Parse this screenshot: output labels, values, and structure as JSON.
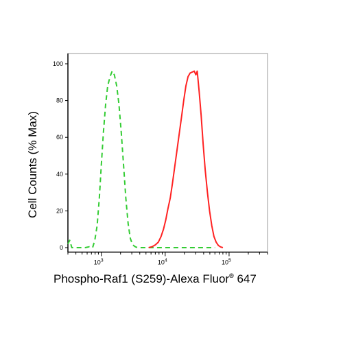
{
  "chart_data": {
    "type": "line",
    "title": "",
    "xlabel": "Phospho-Raf1 (S259)-Alexa Fluor",
    "xlabel_sup": "®",
    "xlabel_tail": " 647",
    "ylabel": "Cell Counts (% Max)",
    "x_scale": "log",
    "xlim": [
      300,
      400000
    ],
    "ylim": [
      0,
      100
    ],
    "x_ticks": [
      {
        "value": 1000,
        "base": "10",
        "exp": "3"
      },
      {
        "value": 10000,
        "base": "10",
        "exp": "4"
      },
      {
        "value": 100000,
        "base": "10",
        "exp": "5"
      }
    ],
    "y_ticks": [
      {
        "value": 0,
        "label": "0"
      },
      {
        "value": 20,
        "label": "20"
      },
      {
        "value": 40,
        "label": "40"
      },
      {
        "value": 60,
        "label": "60"
      },
      {
        "value": 80,
        "label": "80"
      },
      {
        "value": 100,
        "label": "100"
      }
    ],
    "grid": false,
    "legend": "none",
    "series": [
      {
        "color": "#33cc33",
        "style": "dashed",
        "points": [
          [
            300,
            2
          ],
          [
            320,
            4
          ],
          [
            345,
            0
          ],
          [
            400,
            0
          ],
          [
            560,
            0
          ],
          [
            650,
            0.5
          ],
          [
            730,
            0
          ],
          [
            790,
            4
          ],
          [
            860,
            12
          ],
          [
            930,
            27
          ],
          [
            1000,
            45
          ],
          [
            1080,
            63
          ],
          [
            1170,
            78
          ],
          [
            1260,
            88
          ],
          [
            1370,
            93
          ],
          [
            1480,
            96
          ],
          [
            1600,
            94
          ],
          [
            1740,
            88
          ],
          [
            1890,
            78
          ],
          [
            2050,
            63
          ],
          [
            2230,
            45
          ],
          [
            2420,
            27
          ],
          [
            2630,
            13
          ],
          [
            2850,
            5
          ],
          [
            3100,
            1.5
          ],
          [
            3400,
            0.5
          ],
          [
            3700,
            0
          ],
          [
            8000,
            0
          ],
          [
            20000,
            0
          ],
          [
            40000,
            0
          ],
          [
            60000,
            0
          ]
        ]
      },
      {
        "color": "#ff2222",
        "style": "solid",
        "points": [
          [
            5500,
            0
          ],
          [
            6200,
            0.5
          ],
          [
            7000,
            1.5
          ],
          [
            7800,
            3
          ],
          [
            8600,
            6
          ],
          [
            9400,
            10
          ],
          [
            10200,
            15
          ],
          [
            11000,
            21
          ],
          [
            12000,
            27
          ],
          [
            13000,
            35
          ],
          [
            14100,
            44
          ],
          [
            15300,
            53
          ],
          [
            16600,
            62
          ],
          [
            18000,
            71
          ],
          [
            19500,
            80
          ],
          [
            21100,
            88
          ],
          [
            22800,
            93
          ],
          [
            24600,
            95
          ],
          [
            26500,
            95.5
          ],
          [
            28500,
            96
          ],
          [
            30200,
            94
          ],
          [
            31700,
            96
          ],
          [
            34000,
            85
          ],
          [
            36500,
            72
          ],
          [
            39300,
            56
          ],
          [
            42400,
            42
          ],
          [
            45800,
            30
          ],
          [
            49500,
            20
          ],
          [
            53600,
            12
          ],
          [
            58000,
            6
          ],
          [
            62800,
            3
          ],
          [
            68000,
            1.2
          ],
          [
            73600,
            0.4
          ],
          [
            80000,
            0
          ]
        ]
      }
    ]
  }
}
